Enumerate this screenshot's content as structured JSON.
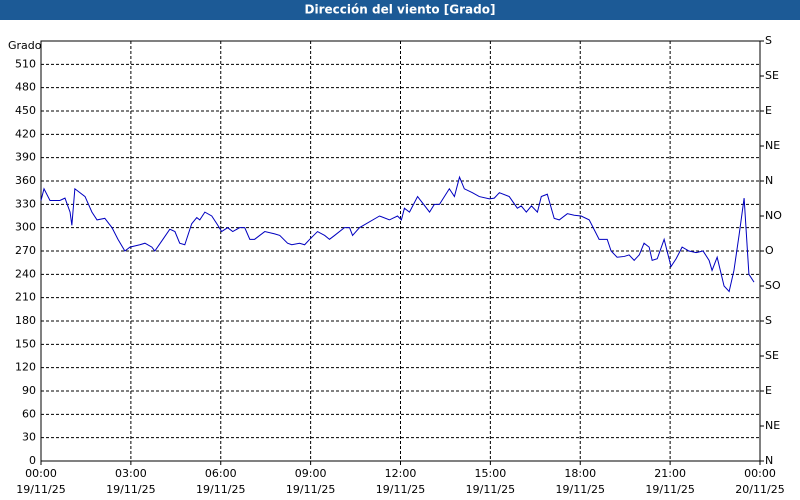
{
  "chart_data": {
    "type": "line",
    "title": "Dirección del viento [Grado]",
    "y_label": "Grado",
    "x": [
      0,
      0.1,
      0.3,
      0.63,
      0.8,
      0.97,
      1.03,
      1.13,
      1.47,
      1.7,
      1.87,
      2.13,
      2.37,
      2.57,
      2.8,
      2.97,
      3.3,
      3.47,
      3.7,
      3.8,
      4.07,
      4.3,
      4.47,
      4.63,
      4.8,
      5.03,
      5.2,
      5.3,
      5.47,
      5.7,
      5.87,
      6.03,
      6.23,
      6.4,
      6.63,
      6.8,
      6.97,
      7.13,
      7.3,
      7.47,
      7.8,
      7.97,
      8.23,
      8.37,
      8.63,
      8.8,
      8.97,
      9.1,
      9.23,
      9.47,
      9.63,
      9.8,
      10.13,
      10.3,
      10.4,
      10.63,
      11.3,
      11.63,
      11.9,
      12.03,
      12.13,
      12.3,
      12.57,
      12.97,
      13.13,
      13.3,
      13.63,
      13.8,
      13.97,
      14.13,
      14.4,
      14.63,
      14.97,
      15.13,
      15.3,
      15.63,
      15.9,
      16.03,
      16.2,
      16.37,
      16.57,
      16.7,
      16.9,
      17.13,
      17.3,
      17.57,
      17.8,
      18.03,
      18.3,
      18.63,
      18.9,
      19.03,
      19.23,
      19.47,
      19.63,
      19.8,
      19.97,
      20.13,
      20.3,
      20.4,
      20.57,
      20.8,
      21.03,
      21.2,
      21.4,
      21.63,
      21.87,
      22.1,
      22.3,
      22.4,
      22.57,
      22.8,
      22.97,
      23.13,
      23.3,
      23.47,
      23.63,
      23.8
    ],
    "series": [
      {
        "name": "Dirección",
        "color": "#0000c0",
        "values": [
          335,
          350,
          335,
          335,
          338,
          320,
          303,
          350,
          340,
          320,
          310,
          312,
          300,
          285,
          270,
          275,
          278,
          280,
          275,
          270,
          285,
          298,
          295,
          280,
          278,
          305,
          313,
          310,
          320,
          315,
          305,
          295,
          300,
          295,
          300,
          300,
          285,
          285,
          290,
          295,
          292,
          290,
          280,
          278,
          280,
          278,
          285,
          290,
          295,
          290,
          285,
          290,
          300,
          300,
          290,
          300,
          315,
          310,
          315,
          310,
          325,
          320,
          340,
          320,
          330,
          330,
          350,
          340,
          365,
          350,
          345,
          340,
          337,
          338,
          345,
          340,
          325,
          328,
          320,
          328,
          320,
          340,
          343,
          312,
          310,
          318,
          316,
          315,
          310,
          285,
          285,
          270,
          262,
          263,
          265,
          258,
          265,
          280,
          275,
          258,
          260,
          285,
          250,
          260,
          275,
          270,
          268,
          270,
          258,
          245,
          262,
          225,
          218,
          245,
          290,
          338,
          240,
          230
        ]
      }
    ],
    "xlim": [
      0,
      24
    ],
    "xticks": [
      {
        "value": 0,
        "label": [
          "00:00",
          "19/11/25"
        ]
      },
      {
        "value": 3,
        "label": [
          "03:00",
          "19/11/25"
        ]
      },
      {
        "value": 6,
        "label": [
          "06:00",
          "19/11/25"
        ]
      },
      {
        "value": 9,
        "label": [
          "09:00",
          "19/11/25"
        ]
      },
      {
        "value": 12,
        "label": [
          "12:00",
          "19/11/25"
        ]
      },
      {
        "value": 15,
        "label": [
          "15:00",
          "19/11/25"
        ]
      },
      {
        "value": 18,
        "label": [
          "18:00",
          "19/11/25"
        ]
      },
      {
        "value": 21,
        "label": [
          "21:00",
          "19/11/25"
        ]
      },
      {
        "value": 24,
        "label": [
          "00:00",
          "20/11/25"
        ]
      }
    ],
    "ylim": [
      0,
      540
    ],
    "yticks": [
      0,
      30,
      60,
      90,
      120,
      150,
      180,
      210,
      240,
      270,
      300,
      330,
      360,
      390,
      420,
      450,
      480,
      510
    ],
    "y2lim": [
      0,
      540
    ],
    "y2ticks": [
      {
        "value": 0,
        "label": "N"
      },
      {
        "value": 45,
        "label": "NE"
      },
      {
        "value": 90,
        "label": "E"
      },
      {
        "value": 135,
        "label": "SE"
      },
      {
        "value": 180,
        "label": "S"
      },
      {
        "value": 225,
        "label": "SO"
      },
      {
        "value": 270,
        "label": "O"
      },
      {
        "value": 315,
        "label": "NO"
      },
      {
        "value": 360,
        "label": "N"
      },
      {
        "value": 405,
        "label": "NE"
      },
      {
        "value": 450,
        "label": "E"
      },
      {
        "value": 495,
        "label": "SE"
      },
      {
        "value": 540,
        "label": "S"
      }
    ],
    "grid": true
  }
}
